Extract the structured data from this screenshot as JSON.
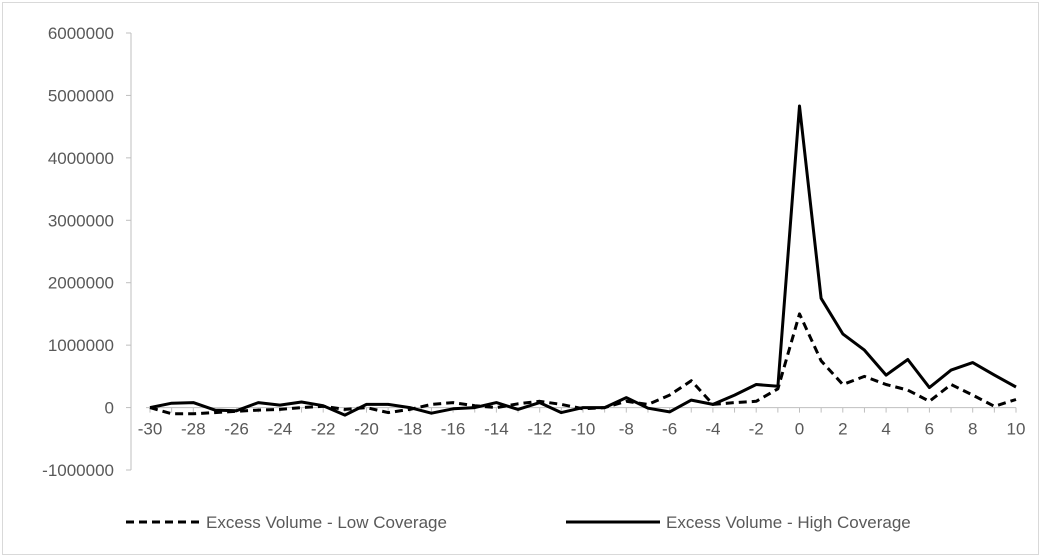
{
  "chart_data": {
    "type": "line",
    "title": "",
    "xlabel": "",
    "ylabel": "",
    "xlim": [
      -30,
      10
    ],
    "ylim": [
      -1000000,
      6000000
    ],
    "x_ticks": [
      -30,
      -28,
      -26,
      -24,
      -22,
      -20,
      -18,
      -16,
      -14,
      -12,
      -10,
      -8,
      -6,
      -4,
      -2,
      0,
      2,
      4,
      6,
      8,
      10
    ],
    "x_tick_labels": [
      "-30",
      "-28",
      "-26",
      "-24",
      "-22",
      "-20",
      "-18",
      "-16",
      "-14",
      "-12",
      "-10",
      "-8",
      "-6",
      "-4",
      "-2",
      "0",
      "2",
      "4",
      "6",
      "8",
      "10"
    ],
    "y_ticks": [
      -1000000,
      0,
      1000000,
      2000000,
      3000000,
      4000000,
      5000000,
      6000000
    ],
    "y_tick_labels": [
      "-1000000",
      "0",
      "1000000",
      "2000000",
      "3000000",
      "4000000",
      "5000000",
      "6000000"
    ],
    "grid": false,
    "legend_position": "bottom",
    "x": [
      -30,
      -29,
      -28,
      -27,
      -26,
      -25,
      -24,
      -23,
      -22,
      -21,
      -20,
      -19,
      -18,
      -17,
      -16,
      -15,
      -14,
      -13,
      -12,
      -11,
      -10,
      -9,
      -8,
      -7,
      -6,
      -5,
      -4,
      -3,
      -2,
      -1,
      0,
      1,
      2,
      3,
      4,
      5,
      6,
      7,
      8,
      9,
      10
    ],
    "series": [
      {
        "name": "Excess Volume - Low Coverage",
        "style": "dashed",
        "color": "#000000",
        "values": [
          0,
          -100000,
          -100000,
          -80000,
          -60000,
          -40000,
          -30000,
          0,
          20000,
          -30000,
          0,
          -80000,
          -30000,
          50000,
          80000,
          30000,
          0,
          60000,
          100000,
          50000,
          -20000,
          0,
          100000,
          50000,
          200000,
          430000,
          50000,
          80000,
          100000,
          300000,
          1500000,
          750000,
          370000,
          500000,
          370000,
          280000,
          100000,
          370000,
          200000,
          20000,
          130000
        ]
      },
      {
        "name": "Excess Volume - High Coverage",
        "style": "solid",
        "color": "#000000",
        "values": [
          0,
          70000,
          80000,
          -40000,
          -50000,
          80000,
          40000,
          90000,
          30000,
          -120000,
          50000,
          50000,
          0,
          -90000,
          -20000,
          0,
          80000,
          -30000,
          80000,
          -80000,
          0,
          0,
          160000,
          -10000,
          -70000,
          120000,
          50000,
          200000,
          370000,
          340000,
          4830000,
          1750000,
          1180000,
          920000,
          520000,
          770000,
          320000,
          600000,
          720000,
          520000,
          330000
        ]
      }
    ]
  }
}
